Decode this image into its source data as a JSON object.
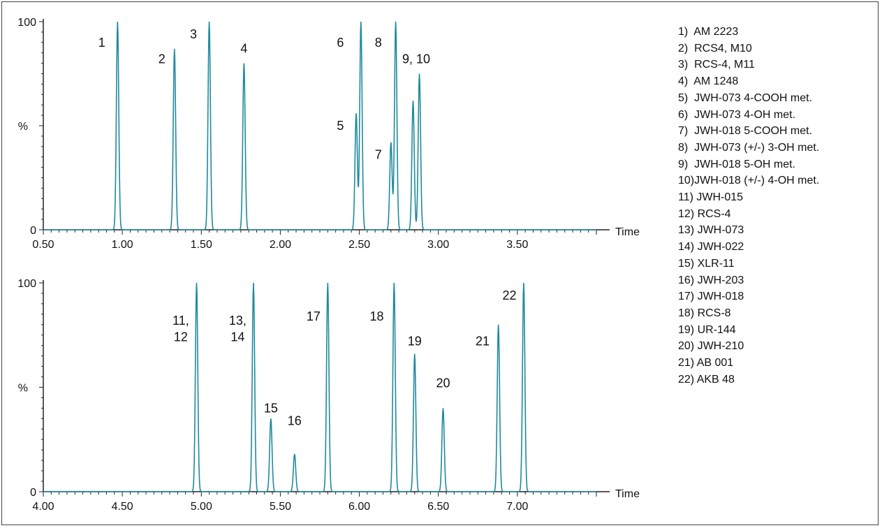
{
  "chart_data": [
    {
      "type": "line",
      "xlabel": "Time",
      "ylabel": "%",
      "xlim": [
        0.5,
        4.0
      ],
      "ylim": [
        0,
        100
      ],
      "x_ticks": [
        0.5,
        1.0,
        1.5,
        2.0,
        2.5,
        3.0,
        3.5
      ],
      "x_tick_labels": [
        "0.50",
        "1.00",
        "1.50",
        "2.00",
        "2.50",
        "3.00",
        "3.50"
      ],
      "y_tick_labels": [
        "0",
        "%",
        "100"
      ],
      "series": [
        {
          "color": "#1f8a9e",
          "peaks": [
            {
              "label": "1",
              "x": 0.97,
              "y": 100
            },
            {
              "label": "2",
              "x": 1.33,
              "y": 87
            },
            {
              "label": "3",
              "x": 1.55,
              "y": 100
            },
            {
              "label": "4",
              "x": 1.77,
              "y": 80
            },
            {
              "label": "5",
              "x": 2.48,
              "y": 56
            },
            {
              "label": "6",
              "x": 2.51,
              "y": 100
            },
            {
              "label": "7",
              "x": 2.7,
              "y": 42
            },
            {
              "label": "8",
              "x": 2.73,
              "y": 100
            },
            {
              "label": "9",
              "x": 2.84,
              "y": 62
            },
            {
              "label": "10",
              "x": 2.88,
              "y": 75
            }
          ]
        }
      ],
      "annotations": [
        {
          "text": "1",
          "x": 0.87,
          "y": 88
        },
        {
          "text": "2",
          "x": 1.25,
          "y": 80
        },
        {
          "text": "3",
          "x": 1.45,
          "y": 92
        },
        {
          "text": "4",
          "x": 1.77,
          "y": 85
        },
        {
          "text": "5",
          "x": 2.38,
          "y": 48
        },
        {
          "text": "6",
          "x": 2.38,
          "y": 88
        },
        {
          "text": "7",
          "x": 2.62,
          "y": 34
        },
        {
          "text": "8",
          "x": 2.62,
          "y": 88
        },
        {
          "text": "9, 10",
          "x": 2.86,
          "y": 80
        }
      ]
    },
    {
      "type": "line",
      "xlabel": "Time",
      "ylabel": "%",
      "xlim": [
        4.0,
        7.5
      ],
      "ylim": [
        0,
        100
      ],
      "x_ticks": [
        4.0,
        4.5,
        5.0,
        5.5,
        6.0,
        6.5,
        7.0
      ],
      "x_tick_labels": [
        "4.00",
        "4.50",
        "5.00",
        "5.50",
        "6.00",
        "6.50",
        "7.00"
      ],
      "y_tick_labels": [
        "0",
        "%",
        "100"
      ],
      "series": [
        {
          "color": "#1f8a9e",
          "peaks": [
            {
              "label": "11, 12",
              "x": 4.97,
              "y": 100
            },
            {
              "label": "13, 14",
              "x": 5.33,
              "y": 100
            },
            {
              "label": "15",
              "x": 5.44,
              "y": 35
            },
            {
              "label": "16",
              "x": 5.59,
              "y": 18
            },
            {
              "label": "17",
              "x": 5.8,
              "y": 100
            },
            {
              "label": "18",
              "x": 6.22,
              "y": 100
            },
            {
              "label": "19",
              "x": 6.35,
              "y": 66
            },
            {
              "label": "20",
              "x": 6.53,
              "y": 40
            },
            {
              "label": "21",
              "x": 6.88,
              "y": 80
            },
            {
              "label": "22",
              "x": 7.04,
              "y": 100
            }
          ]
        }
      ],
      "annotations": [
        {
          "text": "11,",
          "x": 4.87,
          "y": 80
        },
        {
          "text": "12",
          "x": 4.87,
          "y": 72
        },
        {
          "text": "13,",
          "x": 5.23,
          "y": 80
        },
        {
          "text": "14",
          "x": 5.23,
          "y": 72
        },
        {
          "text": "15",
          "x": 5.44,
          "y": 38
        },
        {
          "text": "16",
          "x": 5.59,
          "y": 32
        },
        {
          "text": "17",
          "x": 5.71,
          "y": 82
        },
        {
          "text": "18",
          "x": 6.11,
          "y": 82
        },
        {
          "text": "19",
          "x": 6.35,
          "y": 70
        },
        {
          "text": "20",
          "x": 6.53,
          "y": 50
        },
        {
          "text": "21",
          "x": 6.78,
          "y": 70
        },
        {
          "text": "22",
          "x": 6.95,
          "y": 92
        }
      ]
    }
  ],
  "legend": [
    "1)  AM 2223",
    "2)  RCS4, M10",
    "3)  RCS-4, M11",
    "4)  AM 1248",
    "5)  JWH-073 4-COOH met.",
    "6)  JWH-073 4-OH met.",
    "7)  JWH-018 5-COOH met.",
    "8)  JWH-073 (+/-) 3-OH met.",
    "9)  JWH-018 5-OH met.",
    "10)JWH-018 (+/-) 4-OH met.",
    "11) JWH-015",
    "12) RCS-4",
    "13) JWH-073",
    "14) JWH-022",
    "15) XLR-11",
    "16) JWH-203",
    "17) JWH-018",
    "18) RCS-8",
    "19) UR-144",
    "20) JWH-210",
    "21) AB 001",
    "22) AKB 48"
  ]
}
